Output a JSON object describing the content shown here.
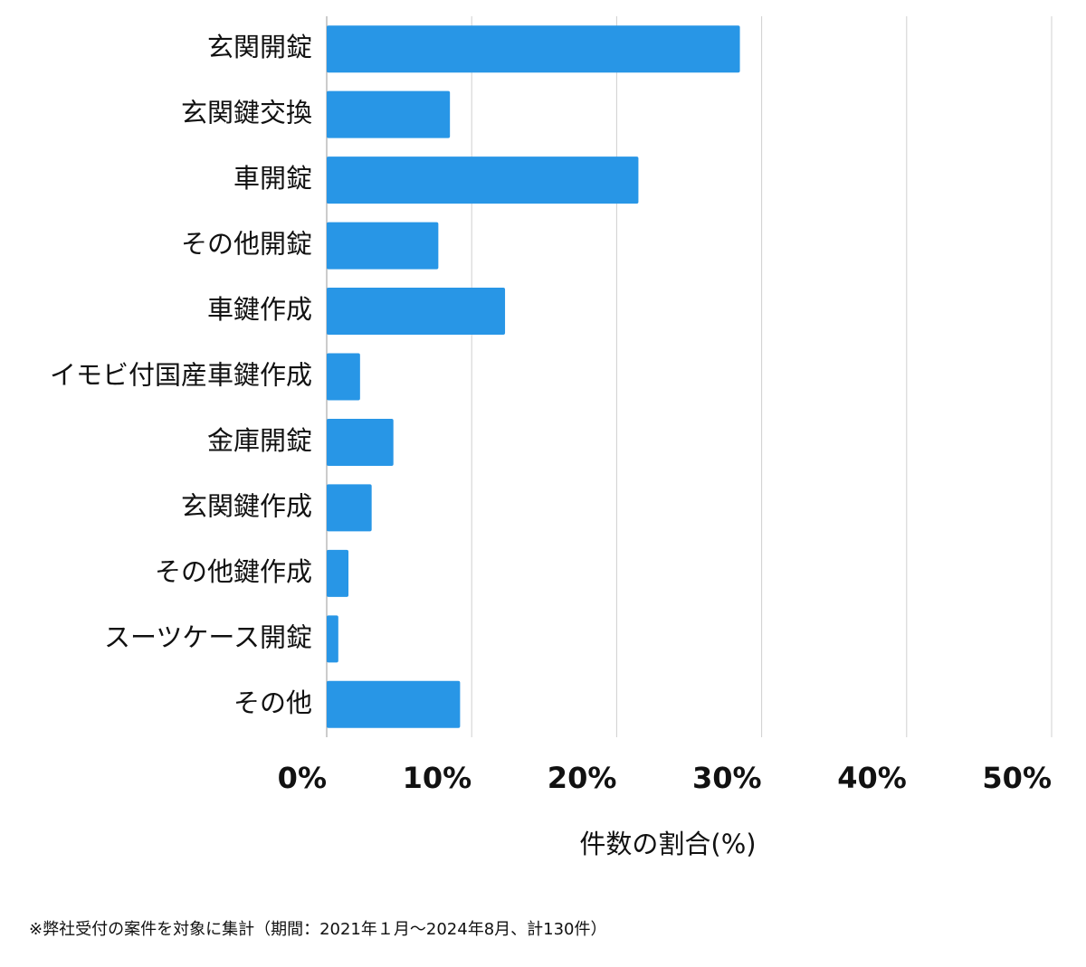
{
  "chart_data": {
    "type": "bar",
    "orientation": "horizontal",
    "categories": [
      "玄関開錠",
      "玄関鍵交換",
      "車開錠",
      "その他開錠",
      "車鍵作成",
      "イモビ付国産車鍵作成",
      "金庫開錠",
      "玄関鍵作成",
      "その他鍵作成",
      "スーツケース開錠",
      "その他"
    ],
    "values": [
      28.5,
      8.5,
      21.5,
      7.7,
      12.3,
      2.3,
      4.6,
      3.1,
      1.5,
      0.8,
      9.2
    ],
    "color": "#2896e6",
    "xlim": [
      0,
      50
    ],
    "xticks": [
      {
        "value": 0,
        "label": "0%"
      },
      {
        "value": 10,
        "label": "10%"
      },
      {
        "value": 20,
        "label": "20%"
      },
      {
        "value": 30,
        "label": "30%"
      },
      {
        "value": 40,
        "label": "40%"
      },
      {
        "value": 50,
        "label": "50%"
      }
    ],
    "grid": true,
    "x_label": "件数の割合(%)",
    "footnote": "※弊社受付の案件を対象に集計（期間：2021年１月～2024年8月、計130件）"
  }
}
